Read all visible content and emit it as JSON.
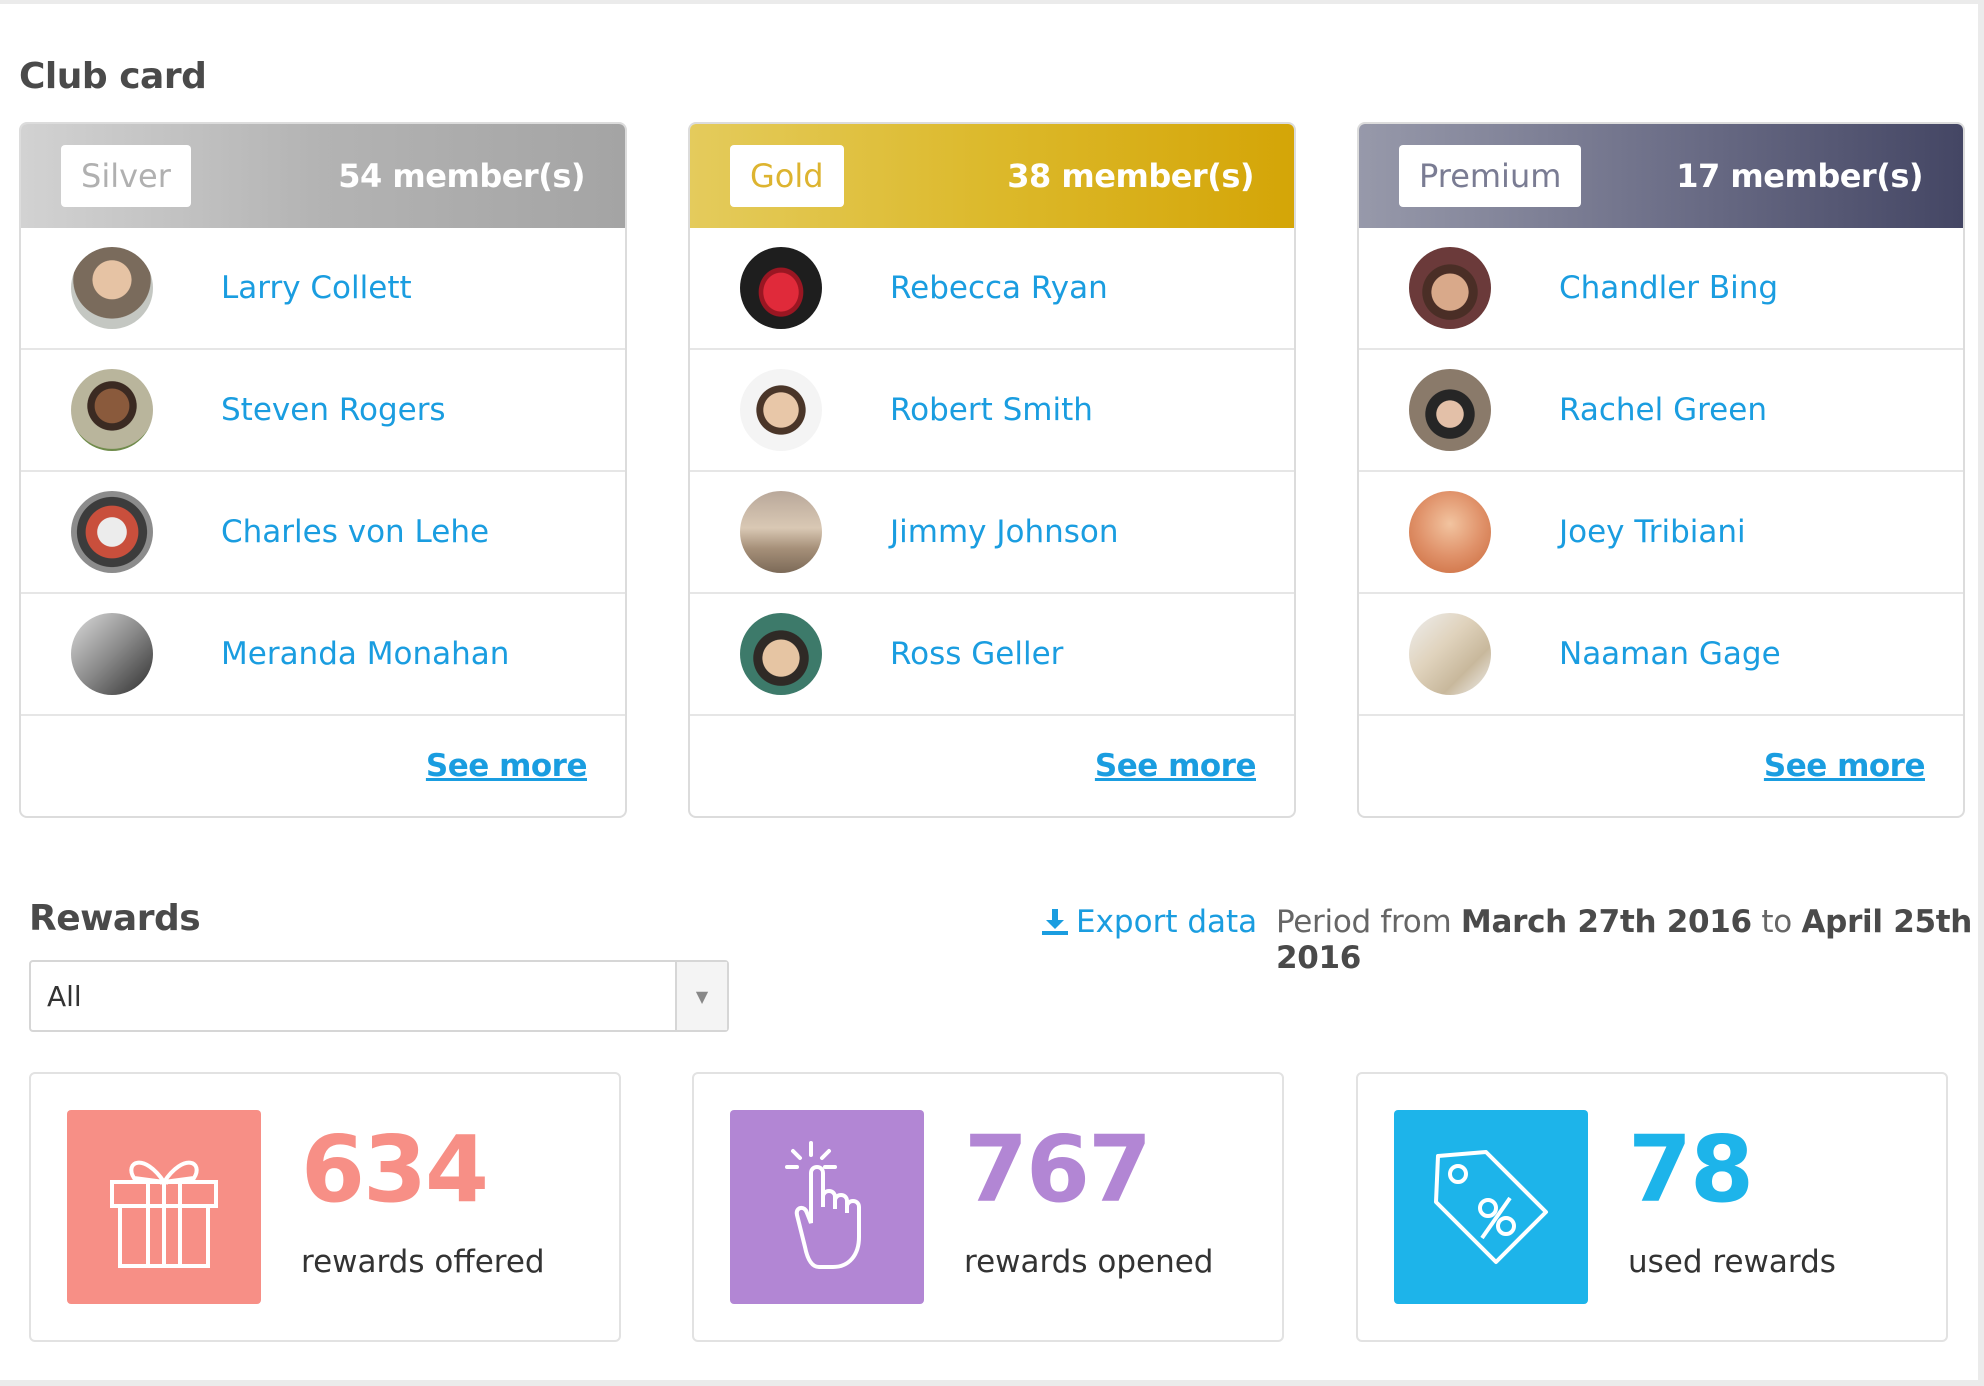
{
  "club": {
    "title": "Club card",
    "cards": [
      {
        "tier": "Silver",
        "members_label": "54 member(s)",
        "members": [
          {
            "name": "Larry Collett"
          },
          {
            "name": "Steven Rogers"
          },
          {
            "name": "Charles von Lehe"
          },
          {
            "name": "Meranda Monahan"
          }
        ],
        "see_more": "See more"
      },
      {
        "tier": "Gold",
        "members_label": "38 member(s)",
        "members": [
          {
            "name": "Rebecca Ryan"
          },
          {
            "name": "Robert Smith"
          },
          {
            "name": "Jimmy Johnson"
          },
          {
            "name": "Ross Geller"
          }
        ],
        "see_more": "See more"
      },
      {
        "tier": "Premium",
        "members_label": "17 member(s)",
        "members": [
          {
            "name": "Chandler Bing"
          },
          {
            "name": "Rachel Green"
          },
          {
            "name": "Joey Tribiani"
          },
          {
            "name": "Naaman Gage"
          }
        ],
        "see_more": "See more"
      }
    ]
  },
  "rewards": {
    "title": "Rewards",
    "export_label": "Export data",
    "period": {
      "prefix": "Period from",
      "start": "March 27th 2016",
      "joiner": "to",
      "end": "April 25th 2016"
    },
    "filter": {
      "selected": "All"
    },
    "stats": [
      {
        "value": "634",
        "label": "rewards offered",
        "icon": "gift-icon",
        "color": "#f78f86"
      },
      {
        "value": "767",
        "label": "rewards opened",
        "icon": "tap-hand-icon",
        "color": "#b286d4"
      },
      {
        "value": "78",
        "label": "used rewards",
        "icon": "discount-tag-icon",
        "color": "#1db4ea"
      }
    ]
  },
  "colors": {
    "silver_header": "#a9a9a9",
    "gold_header": "#d4ad15",
    "premium_header": "#4c4f73",
    "link": "#1a9de0"
  }
}
